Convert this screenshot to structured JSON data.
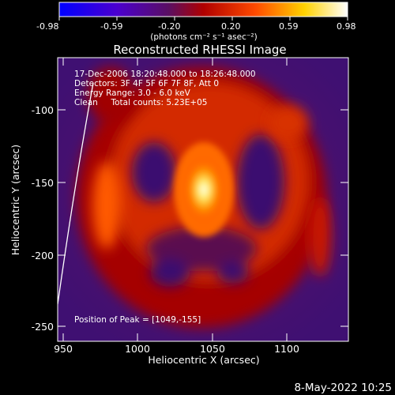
{
  "colorbar": {
    "ticks": [
      "-0.98",
      "-0.59",
      "-0.20",
      "0.20",
      "0.59",
      "0.98"
    ],
    "units": "(photons cm⁻² s⁻¹ asec⁻²)"
  },
  "image": {
    "title": "Reconstructed RHESSI Image",
    "info_lines": [
      "17-Dec-2006 18:20:48.000 to 18:26:48.000",
      "Detectors: 3F 4F 5F 6F 7F 8F, Att 0",
      "Energy Range: 3.0 - 6.0 keV",
      "Clean     Total counts: 5.23E+05"
    ],
    "peak_label": "Position of Peak = [1049,-155]"
  },
  "axes": {
    "xlabel": "Heliocentric X (arcsec)",
    "ylabel": "Heliocentric Y (arcsec)",
    "xticks": [
      "950",
      "1000",
      "1050",
      "1100"
    ],
    "yticks": [
      "-100",
      "-150",
      "-200",
      "-250"
    ]
  },
  "footer": {
    "date": "8-May-2022 10:25"
  }
}
